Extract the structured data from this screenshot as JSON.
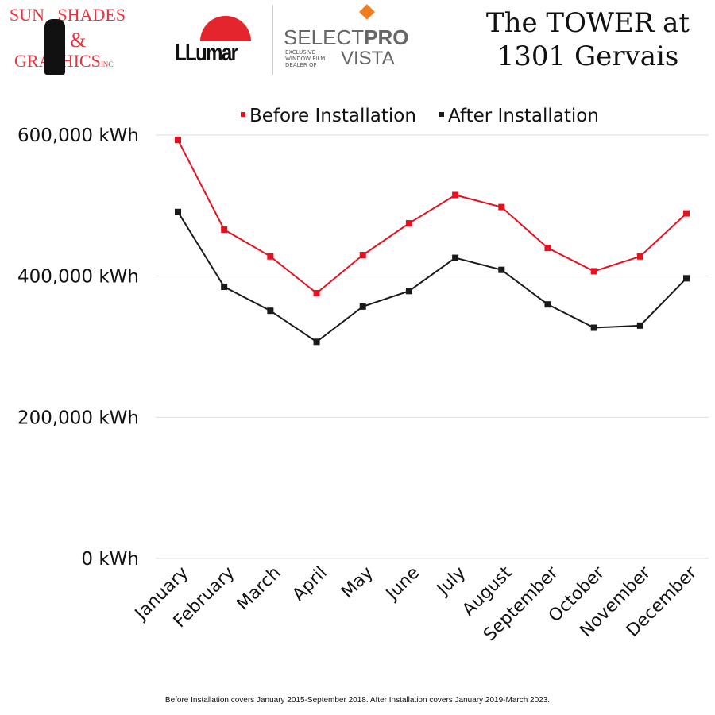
{
  "header": {
    "title_line1": "The TOWER at",
    "title_line2": "1301 Gervais",
    "logos": {
      "sun_shades": "SUN SHADES & GRAPHICS INC.",
      "llumar": "LLumar",
      "selectpro": "SELECTPRO",
      "selectpro_sub": "EXCLUSIVE WINDOW FILM DEALER OF",
      "vista": "VISTA"
    }
  },
  "footnote": "Before Installation covers January 2015-September 2018. After Installation covers January 2019-March 2023.",
  "chart_data": {
    "type": "line",
    "categories": [
      "January",
      "February",
      "March",
      "April",
      "May",
      "June",
      "July",
      "August",
      "September",
      "October",
      "November",
      "December"
    ],
    "series": [
      {
        "name": "Before Installation",
        "color": "#e8101e",
        "values": [
          593000,
          466000,
          428000,
          376000,
          430000,
          475000,
          515000,
          498000,
          440000,
          407000,
          428000,
          489000
        ]
      },
      {
        "name": "After Installation",
        "color": "#1a1a1a",
        "values": [
          491000,
          385000,
          351000,
          307000,
          357000,
          379000,
          426000,
          409000,
          360000,
          327000,
          330000,
          397000
        ]
      }
    ],
    "yticks": [
      "0 kWh",
      "200,000 kWh",
      "400,000 kWh",
      "600,000 kWh"
    ],
    "ytick_values": [
      0,
      200000,
      400000,
      600000
    ],
    "ylim": [
      0,
      600000
    ],
    "grid": "horizontal",
    "legend": "top"
  }
}
